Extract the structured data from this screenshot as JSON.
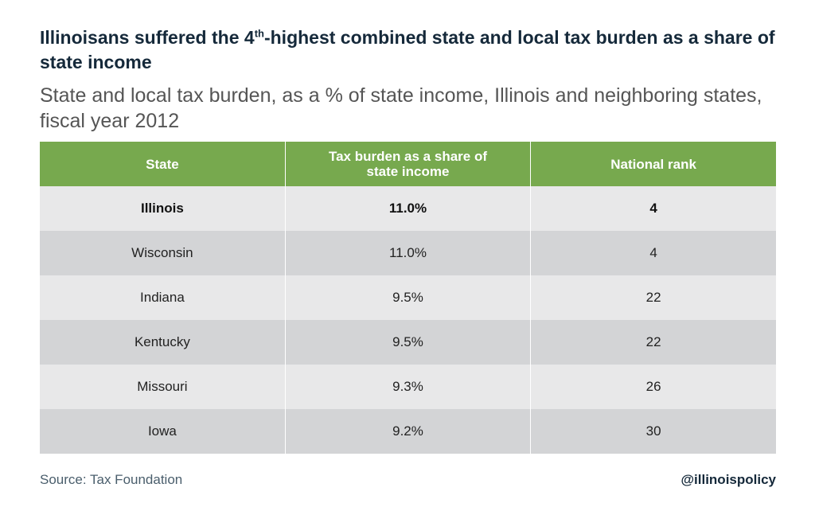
{
  "header": {
    "title_parts": [
      "Illinoisans suffered the 4",
      "th",
      "-highest combined state and local tax burden as a share of state income"
    ],
    "subtitle": "State and local tax burden, as a % of state income, Illinois and neighboring states, fiscal year 2012"
  },
  "table": {
    "columns": [
      "State",
      "Tax burden as a share of state income",
      "National rank"
    ],
    "rows": [
      [
        "Illinois",
        "11.0%",
        "4"
      ],
      [
        "Wisconsin",
        "11.0%",
        "4"
      ],
      [
        "Indiana",
        "9.5%",
        "22"
      ],
      [
        "Kentucky",
        "9.5%",
        "22"
      ],
      [
        "Missouri",
        "9.3%",
        "26"
      ],
      [
        "Iowa",
        "9.2%",
        "30"
      ]
    ]
  },
  "footer": {
    "source": "Source: Tax Foundation",
    "handle": "@illinoispolicy"
  }
}
